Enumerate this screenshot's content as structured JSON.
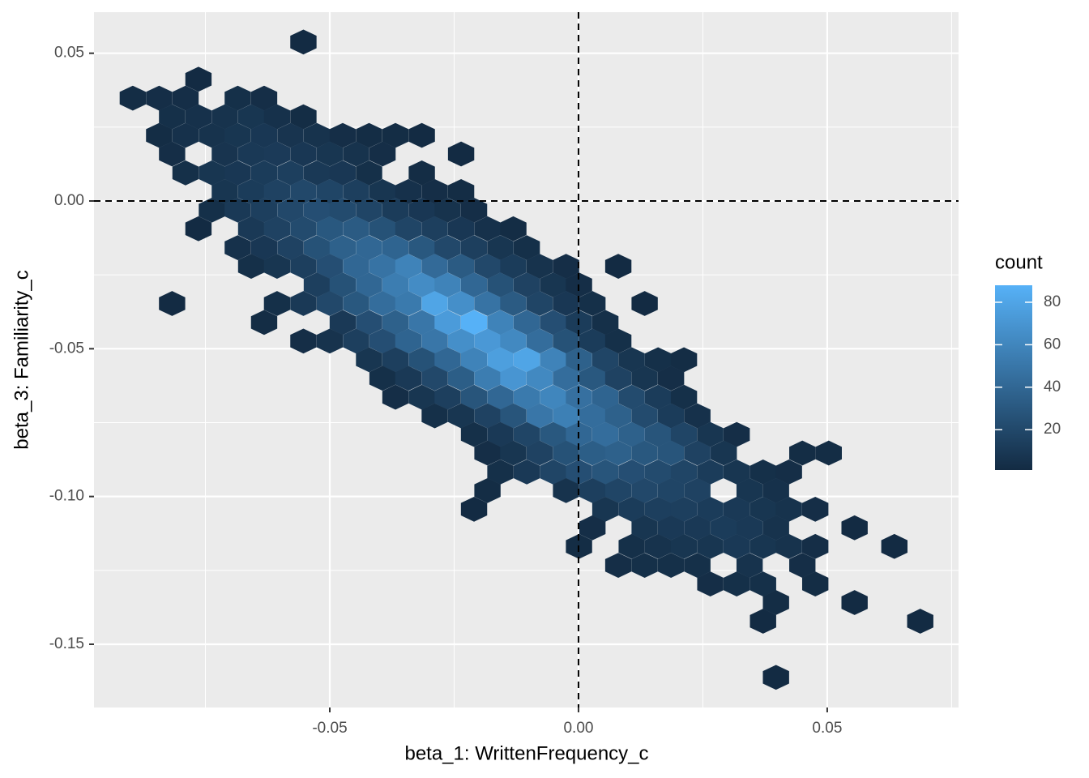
{
  "chart_data": {
    "type": "hexbin",
    "x_label": "beta_1: WrittenFrequency_c",
    "y_label": "beta_3: Familiarity_c",
    "legend_title": "count",
    "xlim": [
      -0.0974,
      0.0764
    ],
    "ylim": [
      -0.1714,
      0.0639
    ],
    "xticks": [
      -0.05,
      {
        "value": 0,
        "label": "0.00"
      },
      0.05
    ],
    "yticks": [
      0.05,
      {
        "value": 0,
        "label": "0.00"
      },
      -0.05,
      {
        "value": -0.1,
        "label": "-0.10"
      },
      -0.15
    ],
    "xminor": [
      -0.075,
      -0.025,
      0.025,
      0.075
    ],
    "yminor": [
      0.025,
      -0.025,
      -0.075,
      -0.125
    ],
    "grid": true,
    "hline": 0,
    "vline": 0,
    "color_low": "#132B43",
    "color_high": "#56B1F7",
    "color_limits": [
      1,
      88
    ],
    "color_ticks": [
      20,
      40,
      60,
      80
    ],
    "x": [
      -0.0553,
      -0.0764,
      -0.0896,
      -0.0843,
      -0.079,
      -0.0685,
      -0.0632,
      -0.0817,
      -0.0764,
      -0.0711,
      -0.0658,
      -0.0606,
      -0.0553,
      -0.0843,
      -0.079,
      -0.0737,
      -0.0685,
      -0.0632,
      -0.0579,
      -0.0526,
      -0.0474,
      -0.0421,
      -0.0368,
      -0.0315,
      -0.0817,
      -0.0711,
      -0.0658,
      -0.0606,
      -0.0553,
      -0.05,
      -0.0447,
      -0.0394,
      -0.0236,
      -0.079,
      -0.0737,
      -0.0685,
      -0.0632,
      -0.0579,
      -0.0526,
      -0.0474,
      -0.0421,
      -0.0315,
      -0.0711,
      -0.0658,
      -0.0606,
      -0.0553,
      -0.05,
      -0.0447,
      -0.0394,
      -0.0342,
      -0.0289,
      -0.0236,
      -0.0737,
      -0.0685,
      -0.0632,
      -0.0579,
      -0.0526,
      -0.0474,
      -0.0421,
      -0.0368,
      -0.0315,
      -0.0263,
      -0.021,
      -0.0764,
      -0.0658,
      -0.0606,
      -0.0553,
      -0.05,
      -0.0447,
      -0.0394,
      -0.0342,
      -0.0289,
      -0.0236,
      -0.0183,
      -0.0131,
      -0.0685,
      -0.0632,
      -0.0579,
      -0.0526,
      -0.0474,
      -0.0421,
      -0.0368,
      -0.0315,
      -0.0263,
      -0.021,
      -0.0157,
      -0.0104,
      -0.0658,
      -0.0606,
      -0.0553,
      -0.05,
      -0.0447,
      -0.0394,
      -0.0342,
      -0.0289,
      -0.0236,
      -0.0183,
      -0.0131,
      -0.0078,
      -0.0025,
      0.008,
      -0.0526,
      -0.0474,
      -0.0421,
      -0.0368,
      -0.0315,
      -0.0263,
      -0.021,
      -0.0157,
      -0.0104,
      -0.0051,
      0.0001,
      -0.0817,
      -0.0606,
      -0.0553,
      -0.05,
      -0.0447,
      -0.0394,
      -0.0342,
      -0.0289,
      -0.0236,
      -0.0183,
      -0.0131,
      -0.0078,
      -0.0025,
      0.0028,
      0.0133,
      -0.0632,
      -0.0474,
      -0.0421,
      -0.0368,
      -0.0315,
      -0.0263,
      -0.021,
      -0.0157,
      -0.0104,
      -0.0051,
      0.0001,
      0.0054,
      -0.0553,
      -0.05,
      -0.0447,
      -0.0394,
      -0.0342,
      -0.0289,
      -0.0236,
      -0.0183,
      -0.0131,
      -0.0078,
      -0.0025,
      0.0028,
      0.008,
      -0.0421,
      -0.0368,
      -0.0315,
      -0.0263,
      -0.021,
      -0.0157,
      -0.0104,
      -0.0051,
      0.0001,
      0.0054,
      0.0107,
      0.016,
      0.0212,
      -0.0394,
      -0.0342,
      -0.0289,
      -0.0236,
      -0.0183,
      -0.0131,
      -0.0078,
      -0.0025,
      0.0028,
      0.008,
      0.0133,
      0.0186,
      -0.0368,
      -0.0315,
      -0.0263,
      -0.021,
      -0.0157,
      -0.0104,
      -0.0051,
      0.0001,
      0.0054,
      0.0107,
      0.016,
      0.0212,
      -0.0289,
      -0.0236,
      -0.0183,
      -0.0131,
      -0.0078,
      -0.0025,
      0.0028,
      0.008,
      0.0133,
      0.0186,
      0.0239,
      -0.021,
      -0.0157,
      -0.0104,
      -0.0051,
      0.0001,
      0.0054,
      0.0107,
      0.016,
      0.0212,
      0.0265,
      0.0318,
      -0.0183,
      -0.0131,
      -0.0078,
      -0.0025,
      0.0028,
      0.008,
      0.0133,
      0.0186,
      0.0239,
      0.0292,
      0.045,
      0.0503,
      -0.0157,
      -0.0104,
      -0.0051,
      0.0001,
      0.0054,
      0.0107,
      0.016,
      0.0212,
      0.0265,
      0.0318,
      0.0371,
      0.0423,
      -0.0183,
      -0.0025,
      0.0028,
      0.008,
      0.0133,
      0.0186,
      0.0239,
      0.0344,
      0.0397,
      -0.021,
      0.0054,
      0.0107,
      0.016,
      0.0212,
      0.0265,
      0.0318,
      0.0371,
      0.0423,
      0.0476,
      0.0028,
      0.0133,
      0.0186,
      0.0239,
      0.0292,
      0.0344,
      0.0397,
      0.0555,
      0.0001,
      0.0107,
      0.016,
      0.0212,
      0.0265,
      0.0318,
      0.0371,
      0.0423,
      0.0476,
      0.0635,
      0.008,
      0.0133,
      0.0186,
      0.0239,
      0.0344,
      0.045,
      0.0265,
      0.0318,
      0.0371,
      0.0476,
      0.0397,
      0.0555,
      0.0371,
      0.0687,
      0.0397
    ],
    "y": [
      0.0538,
      0.0412,
      0.0348,
      0.0348,
      0.0348,
      0.0348,
      0.0348,
      0.0285,
      0.0285,
      0.0285,
      0.0285,
      0.0285,
      0.0285,
      0.0222,
      0.0222,
      0.0222,
      0.0222,
      0.0222,
      0.0222,
      0.0222,
      0.0222,
      0.0222,
      0.0222,
      0.0222,
      0.0159,
      0.0159,
      0.0159,
      0.0159,
      0.0159,
      0.0159,
      0.0159,
      0.0159,
      0.0159,
      0.0095,
      0.0095,
      0.0095,
      0.0095,
      0.0095,
      0.0095,
      0.0095,
      0.0095,
      0.0095,
      0.0032,
      0.0032,
      0.0032,
      0.0032,
      0.0032,
      0.0032,
      0.0032,
      0.0032,
      0.0032,
      0.0032,
      -0.0031,
      -0.0031,
      -0.0031,
      -0.0031,
      -0.0031,
      -0.0031,
      -0.0031,
      -0.0031,
      -0.0031,
      -0.0031,
      -0.0031,
      -0.0094,
      -0.0094,
      -0.0094,
      -0.0094,
      -0.0094,
      -0.0094,
      -0.0094,
      -0.0094,
      -0.0094,
      -0.0094,
      -0.0094,
      -0.0094,
      -0.0158,
      -0.0158,
      -0.0158,
      -0.0158,
      -0.0158,
      -0.0158,
      -0.0158,
      -0.0158,
      -0.0158,
      -0.0158,
      -0.0158,
      -0.0158,
      -0.0221,
      -0.0221,
      -0.0221,
      -0.0221,
      -0.0221,
      -0.0221,
      -0.0221,
      -0.0221,
      -0.0221,
      -0.0221,
      -0.0221,
      -0.0221,
      -0.0221,
      -0.0221,
      -0.0284,
      -0.0284,
      -0.0284,
      -0.0284,
      -0.0284,
      -0.0284,
      -0.0284,
      -0.0284,
      -0.0284,
      -0.0284,
      -0.0284,
      -0.0347,
      -0.0347,
      -0.0347,
      -0.0347,
      -0.0347,
      -0.0347,
      -0.0347,
      -0.0347,
      -0.0347,
      -0.0347,
      -0.0347,
      -0.0347,
      -0.0347,
      -0.0347,
      -0.0347,
      -0.0411,
      -0.0411,
      -0.0411,
      -0.0411,
      -0.0411,
      -0.0411,
      -0.0411,
      -0.0411,
      -0.0411,
      -0.0411,
      -0.0411,
      -0.0411,
      -0.0474,
      -0.0474,
      -0.0474,
      -0.0474,
      -0.0474,
      -0.0474,
      -0.0474,
      -0.0474,
      -0.0474,
      -0.0474,
      -0.0474,
      -0.0474,
      -0.0474,
      -0.0537,
      -0.0537,
      -0.0537,
      -0.0537,
      -0.0537,
      -0.0537,
      -0.0537,
      -0.0537,
      -0.0537,
      -0.0537,
      -0.0537,
      -0.0537,
      -0.0537,
      -0.06,
      -0.06,
      -0.06,
      -0.06,
      -0.06,
      -0.06,
      -0.06,
      -0.06,
      -0.06,
      -0.06,
      -0.06,
      -0.06,
      -0.0664,
      -0.0664,
      -0.0664,
      -0.0664,
      -0.0664,
      -0.0664,
      -0.0664,
      -0.0664,
      -0.0664,
      -0.0664,
      -0.0664,
      -0.0664,
      -0.0727,
      -0.0727,
      -0.0727,
      -0.0727,
      -0.0727,
      -0.0727,
      -0.0727,
      -0.0727,
      -0.0727,
      -0.0727,
      -0.0727,
      -0.079,
      -0.079,
      -0.079,
      -0.079,
      -0.079,
      -0.079,
      -0.079,
      -0.079,
      -0.079,
      -0.079,
      -0.079,
      -0.0853,
      -0.0853,
      -0.0853,
      -0.0853,
      -0.0853,
      -0.0853,
      -0.0853,
      -0.0853,
      -0.0853,
      -0.0853,
      -0.0853,
      -0.0853,
      -0.0917,
      -0.0917,
      -0.0917,
      -0.0917,
      -0.0917,
      -0.0917,
      -0.0917,
      -0.0917,
      -0.0917,
      -0.0917,
      -0.0917,
      -0.0917,
      -0.098,
      -0.098,
      -0.098,
      -0.098,
      -0.098,
      -0.098,
      -0.098,
      -0.098,
      -0.098,
      -0.1043,
      -0.1043,
      -0.1043,
      -0.1043,
      -0.1043,
      -0.1043,
      -0.1043,
      -0.1043,
      -0.1043,
      -0.1043,
      -0.1106,
      -0.1106,
      -0.1106,
      -0.1106,
      -0.1106,
      -0.1106,
      -0.1106,
      -0.1106,
      -0.1169,
      -0.1169,
      -0.1169,
      -0.1169,
      -0.1169,
      -0.1169,
      -0.1169,
      -0.1169,
      -0.1169,
      -0.1169,
      -0.1233,
      -0.1233,
      -0.1233,
      -0.1233,
      -0.1233,
      -0.1233,
      -0.1296,
      -0.1296,
      -0.1296,
      -0.1296,
      -0.1359,
      -0.1359,
      -0.1422,
      -0.1422,
      -0.1612
    ],
    "values": [
      1,
      1,
      2,
      3,
      3,
      4,
      3,
      4,
      5,
      6,
      8,
      5,
      2,
      2,
      5,
      6,
      8,
      9,
      7,
      6,
      3,
      2,
      2,
      1,
      3,
      7,
      10,
      11,
      9,
      8,
      6,
      3,
      1,
      4,
      8,
      9,
      12,
      14,
      10,
      9,
      4,
      2,
      8,
      12,
      16,
      20,
      18,
      14,
      8,
      5,
      3,
      2,
      4,
      10,
      14,
      20,
      24,
      22,
      18,
      12,
      9,
      6,
      3,
      1,
      10,
      16,
      22,
      30,
      32,
      26,
      18,
      14,
      9,
      5,
      2,
      5,
      9,
      16,
      26,
      36,
      40,
      38,
      30,
      20,
      14,
      8,
      4,
      4,
      8,
      14,
      24,
      40,
      48,
      58,
      42,
      32,
      20,
      12,
      6,
      3,
      1,
      14,
      26,
      40,
      54,
      64,
      58,
      40,
      26,
      16,
      8,
      3,
      1,
      4,
      10,
      20,
      30,
      44,
      52,
      80,
      66,
      48,
      32,
      18,
      9,
      4,
      1,
      2,
      10,
      24,
      36,
      50,
      74,
      88,
      58,
      40,
      24,
      12,
      4,
      3,
      6,
      14,
      24,
      38,
      50,
      66,
      72,
      62,
      44,
      26,
      12,
      4,
      8,
      14,
      26,
      40,
      58,
      76,
      80,
      58,
      36,
      18,
      8,
      4,
      2,
      4,
      10,
      20,
      34,
      54,
      70,
      62,
      44,
      30,
      16,
      8,
      3,
      3,
      8,
      14,
      28,
      40,
      52,
      60,
      46,
      38,
      22,
      12,
      4,
      4,
      8,
      16,
      28,
      50,
      56,
      44,
      36,
      22,
      12,
      5,
      4,
      10,
      18,
      30,
      40,
      44,
      36,
      28,
      18,
      8,
      3,
      3,
      8,
      16,
      26,
      34,
      36,
      30,
      28,
      16,
      8,
      2,
      2,
      4,
      10,
      18,
      24,
      28,
      24,
      22,
      18,
      12,
      8,
      4,
      3,
      2,
      6,
      14,
      18,
      20,
      18,
      16,
      8,
      5,
      1,
      8,
      12,
      14,
      14,
      12,
      10,
      8,
      6,
      3,
      3,
      8,
      10,
      10,
      12,
      10,
      6,
      1,
      2,
      4,
      6,
      8,
      8,
      10,
      8,
      6,
      3,
      1,
      3,
      4,
      4,
      4,
      6,
      3,
      3,
      4,
      4,
      2,
      2,
      1,
      1,
      1,
      1
    ]
  }
}
